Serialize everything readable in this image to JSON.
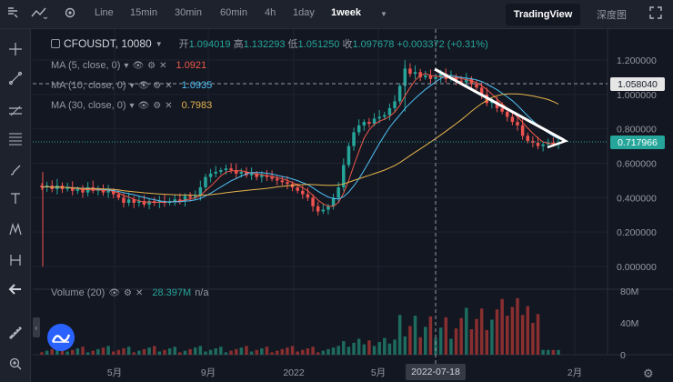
{
  "toolbar": {
    "intervals": [
      "Line",
      "15min",
      "30min",
      "60min",
      "4h",
      "1day",
      "1week"
    ],
    "active_interval": "1week",
    "brand": "TradingView",
    "depth_chart": "深度图"
  },
  "symbol": {
    "name": "CFOUSDT, 10080",
    "open_label": "开",
    "open": "1.094019",
    "high_label": "高",
    "high": "1.132293",
    "low_label": "低",
    "low": "1.051250",
    "close_label": "收",
    "close": "1.097678",
    "change": "+0.003372 (+0.31%)"
  },
  "indicators": [
    {
      "label": "MA (5, close, 0)",
      "value": "1.0921",
      "color": "#f0594a"
    },
    {
      "label": "MA (10, close, 0)",
      "value": "1.0935",
      "color": "#4fc3f7"
    },
    {
      "label": "MA (30, close, 0)",
      "value": "0.7983",
      "color": "#e6b44c"
    }
  ],
  "volume": {
    "label": "Volume (20)",
    "value": "28.397M",
    "extra": "n/a"
  },
  "price_axis": [
    "1.200000",
    "1.000000",
    "0.800000",
    "0.600000",
    "0.400000",
    "0.200000",
    "0.000000"
  ],
  "volume_axis": [
    "80M",
    "40M",
    "0"
  ],
  "time_axis": [
    "5月",
    "9月",
    "2022",
    "5月",
    "2月"
  ],
  "crosshair": {
    "price": "1.058040",
    "date": "2022-07-18"
  },
  "last_price": "0.717966",
  "colors": {
    "up": "#26a69a",
    "down": "#ef5350",
    "ma5": "#f0594a",
    "ma10": "#4fc3f7",
    "ma30": "#e6b44c",
    "background": "#131722"
  },
  "icons": [
    "crosshair-icon",
    "trend-line-icon",
    "horizontal-line-icon",
    "fib-icon",
    "brush-icon",
    "text-icon",
    "pattern-icon",
    "measure-icon",
    "back-arrow-icon",
    "ruler-icon",
    "zoom-icon"
  ]
}
